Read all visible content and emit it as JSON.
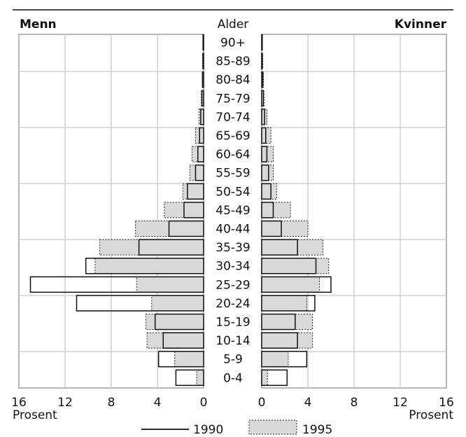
{
  "chart_data": {
    "type": "bar",
    "orientation": "horizontal-population-pyramid",
    "left_header": "Menn",
    "center_header": "Alder",
    "right_header": "Kvinner",
    "categories": [
      "90+",
      "85-89",
      "80-84",
      "75-79",
      "70-74",
      "65-69",
      "60-64",
      "55-59",
      "50-54",
      "45-49",
      "40-44",
      "35-39",
      "30-34",
      "25-29",
      "20-24",
      "15-19",
      "10-14",
      "5-9",
      "0-4"
    ],
    "x_ticks_left": [
      "16",
      "12",
      "8",
      "4",
      "0"
    ],
    "x_ticks_right": [
      "0",
      "4",
      "8",
      "12",
      "16"
    ],
    "xlabel_left": "Prosent",
    "xlabel_right": "Prosent",
    "xlim": [
      0,
      16
    ],
    "grid": true,
    "legend": [
      {
        "label": "1990",
        "style": "solid-outline"
      },
      {
        "label": "1995",
        "style": "dotted-grey-fill"
      }
    ],
    "legend_position": "bottom-center",
    "series": {
      "1990": {
        "men": [
          0.05,
          0.05,
          0.1,
          0.15,
          0.25,
          0.35,
          0.5,
          0.7,
          1.4,
          1.7,
          3.0,
          5.6,
          10.2,
          15.0,
          11.0,
          4.2,
          3.5,
          3.9,
          2.4
        ],
        "women": [
          0.05,
          0.05,
          0.1,
          0.15,
          0.25,
          0.35,
          0.45,
          0.6,
          0.8,
          1.0,
          1.7,
          3.1,
          4.7,
          6.0,
          4.6,
          2.9,
          3.1,
          3.9,
          2.2
        ]
      },
      "1995": {
        "men": [
          0.05,
          0.1,
          0.1,
          0.2,
          0.4,
          0.7,
          1.0,
          1.2,
          1.8,
          3.4,
          5.9,
          9.0,
          9.4,
          5.8,
          4.5,
          5.0,
          4.9,
          2.5,
          0.6
        ],
        "women": [
          0.05,
          0.1,
          0.15,
          0.2,
          0.45,
          0.8,
          1.0,
          1.0,
          1.3,
          2.5,
          4.0,
          5.3,
          5.8,
          5.0,
          3.9,
          4.4,
          4.4,
          2.3,
          0.5
        ]
      }
    }
  }
}
